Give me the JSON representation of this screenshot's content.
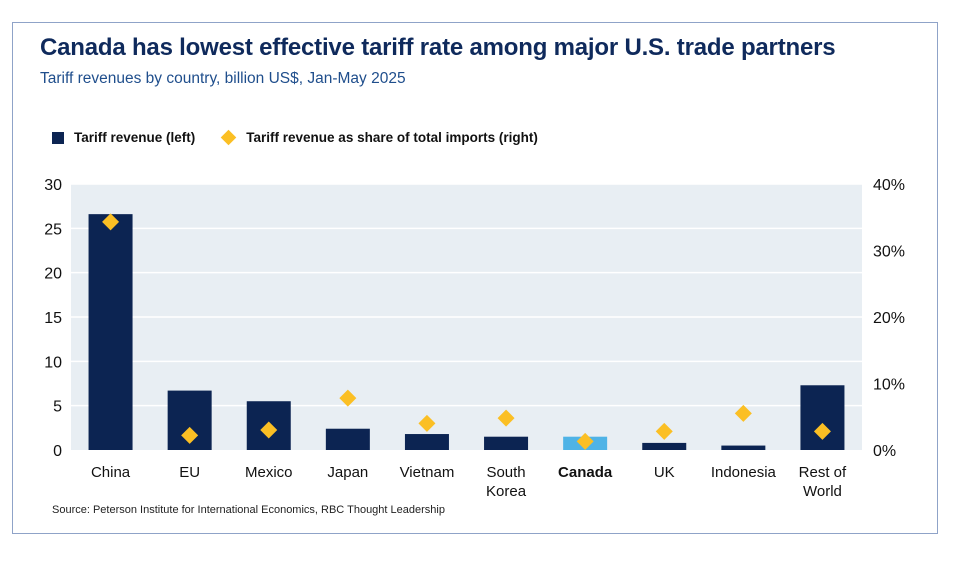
{
  "title": "Canada has lowest effective tariff rate among major U.S. trade partners",
  "subtitle": "Tariff revenues by country, billion US$, Jan-May 2025",
  "source": "Source: Peterson Institute for International Economics, RBC Thought Leadership",
  "colors": {
    "bar": "#0c2452",
    "highlight_bar": "#4fb3e6",
    "diamond": "#fbbf24",
    "plot_bg": "#e8eef3",
    "title": "#0f2a5c",
    "subtitle": "#1f4e8c"
  },
  "chart_data": {
    "type": "bar",
    "categories": [
      "China",
      "EU",
      "Mexico",
      "Japan",
      "Vietnam",
      "South Korea",
      "Canada",
      "UK",
      "Indonesia",
      "Rest of World"
    ],
    "category_lines": [
      [
        "China"
      ],
      [
        "EU"
      ],
      [
        "Mexico"
      ],
      [
        "Japan"
      ],
      [
        "Vietnam"
      ],
      [
        "South",
        "Korea"
      ],
      [
        "Canada"
      ],
      [
        "UK"
      ],
      [
        "Indonesia"
      ],
      [
        "Rest of",
        "World"
      ]
    ],
    "highlight_category": "Canada",
    "series": [
      {
        "name": "Tariff revenue (left)",
        "type": "bar",
        "axis": "left",
        "values": [
          26.6,
          6.7,
          5.5,
          2.4,
          1.8,
          1.5,
          1.5,
          0.8,
          0.5,
          7.3
        ]
      },
      {
        "name": "Tariff revenue as share of total imports (right)",
        "type": "scatter",
        "marker": "diamond",
        "axis": "right",
        "values": [
          34.3,
          2.2,
          3.0,
          7.8,
          4.0,
          4.8,
          1.3,
          2.8,
          5.5,
          2.8
        ]
      }
    ],
    "ylim_left": [
      0,
      30
    ],
    "yticks_left": [
      0,
      5,
      10,
      15,
      20,
      25,
      30
    ],
    "ytick_labels_left": [
      "0",
      "5",
      "10",
      "15",
      "20",
      "25",
      "30"
    ],
    "ylim_right": [
      0,
      40
    ],
    "yticks_right": [
      0,
      10,
      20,
      30,
      40
    ],
    "ytick_labels_right": [
      "0%",
      "10%",
      "20%",
      "30%",
      "40%"
    ],
    "grid": true,
    "legend_position": "top-left"
  }
}
